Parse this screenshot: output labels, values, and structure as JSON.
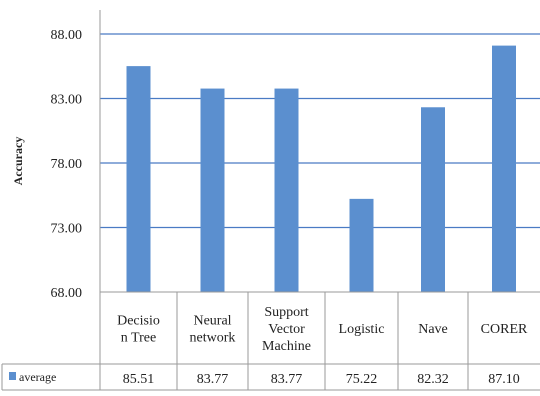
{
  "chart_data": {
    "type": "bar",
    "title": "",
    "xlabel": "",
    "ylabel": "Accuracy",
    "ylim": [
      68,
      88
    ],
    "yticks": [
      "68.00",
      "73.00",
      "78.00",
      "83.00",
      "88.00"
    ],
    "grid": true,
    "categories": [
      [
        "Decisio",
        "n Tree"
      ],
      [
        "Neural",
        "network"
      ],
      [
        "Support",
        "Vector",
        "Machine"
      ],
      [
        "Logistic"
      ],
      [
        "Nave"
      ],
      [
        "CORER"
      ]
    ],
    "series": [
      {
        "name": "average",
        "values": [
          85.51,
          83.77,
          83.77,
          75.22,
          82.32,
          87.1
        ],
        "value_labels": [
          "85.51",
          "83.77",
          "83.77",
          "75.22",
          "82.32",
          "87.10"
        ],
        "color": "#5b8fcf"
      }
    ],
    "legend": "data-table-left"
  },
  "colors": {
    "bar": "#5b8fcf",
    "grid": "#4a7bc4",
    "table_border": "#9a9a9a"
  }
}
